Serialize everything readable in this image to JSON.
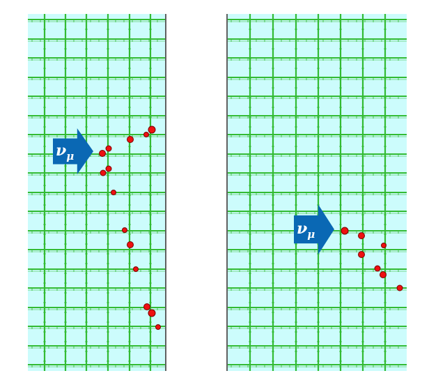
{
  "colors": {
    "background": "#ccfcfc",
    "grid_line": "#33bb33",
    "grid_tick": "#33bb33",
    "hit_fill": "#ee1111",
    "hit_edge": "#7a0000",
    "arrow": "#0a68b4",
    "arrow_text": "#ffffff",
    "frame_edge": "#606060"
  },
  "panels": [
    {
      "name": "left",
      "arrow": {
        "symbol": "ν",
        "subscript": "μ"
      },
      "hits": [
        {
          "r": 4.5
        },
        {
          "r": 4
        },
        {
          "r": 4.5
        },
        {
          "r": 3.5
        },
        {
          "r": 5
        },
        {
          "r": 4
        },
        {
          "r": 4
        },
        {
          "r": 3.5
        },
        {
          "r": 3.5
        },
        {
          "r": 4.5
        },
        {
          "r": 3.5
        },
        {
          "r": 4.5
        },
        {
          "r": 5
        },
        {
          "r": 3.5
        }
      ]
    },
    {
      "name": "right",
      "arrow": {
        "symbol": "ν",
        "subscript": "μ"
      },
      "hits": [
        {
          "r": 5
        },
        {
          "r": 4.5
        },
        {
          "r": 3.5
        },
        {
          "r": 4.5
        },
        {
          "r": 4
        },
        {
          "r": 4.5
        },
        {
          "r": 4
        }
      ]
    }
  ]
}
